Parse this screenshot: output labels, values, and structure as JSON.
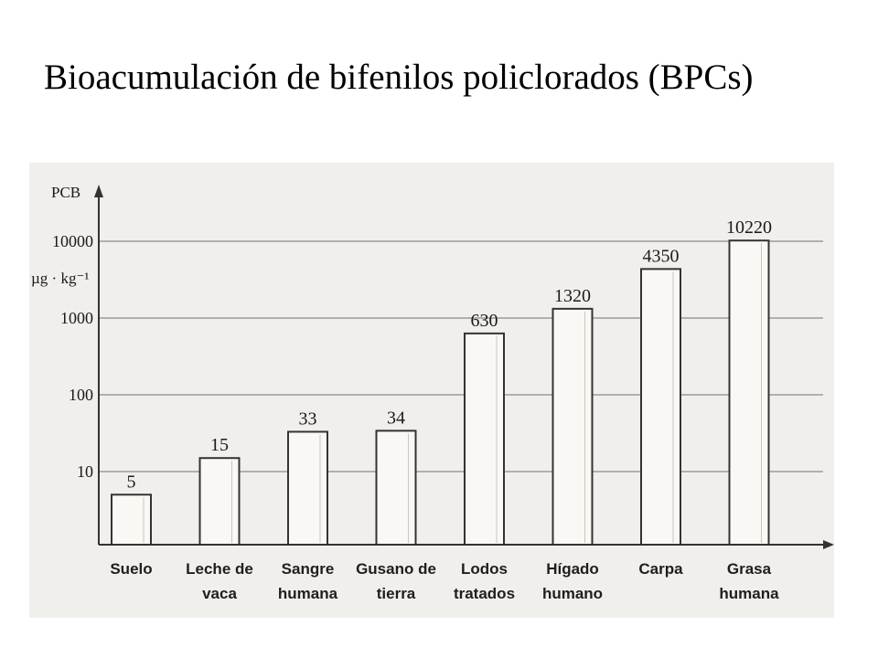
{
  "title": "Bioacumulación de bifenilos policlorados (BPCs)",
  "chart_data": {
    "type": "bar",
    "scale": "log",
    "ylabel": [
      "PCB",
      "µg · kg⁻¹"
    ],
    "yticks": [
      10,
      100,
      1000,
      10000
    ],
    "ylim": [
      1,
      30000
    ],
    "grid": true,
    "categories": [
      [
        "Suelo"
      ],
      [
        "Leche de",
        "vaca"
      ],
      [
        "Sangre",
        "humana"
      ],
      [
        "Gusano de",
        "tierra"
      ],
      [
        "Lodos",
        "tratados"
      ],
      [
        "Hígado",
        "humano"
      ],
      [
        "Carpa"
      ],
      [
        "Grasa",
        "humana"
      ]
    ],
    "values": [
      5,
      15,
      33,
      34,
      630,
      1320,
      4350,
      10220
    ],
    "data_labels": [
      "5",
      "15",
      "33",
      "34",
      "630",
      "1320",
      "4350",
      "10220"
    ]
  },
  "colors": {
    "background": "#f1efec",
    "bar_fill": "#faf8f4",
    "stroke": "#333333",
    "grid": "#9b9b9b"
  }
}
